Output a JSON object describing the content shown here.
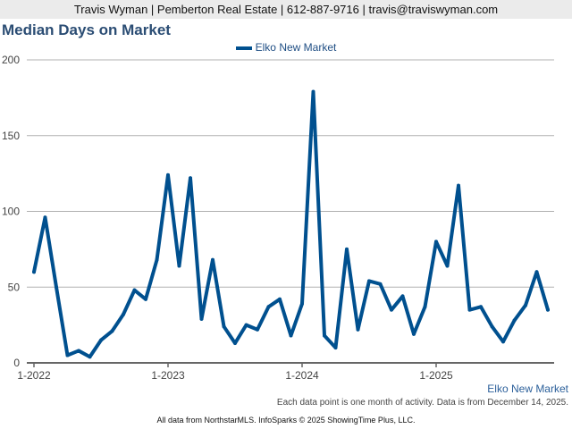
{
  "header": {
    "contact": "Travis Wyman | Pemberton Real Estate | 612-887-9716 | travis@traviswyman.com"
  },
  "chart_data": {
    "type": "line",
    "title": "Median Days on Market",
    "xlabel": "",
    "ylabel": "",
    "ylim": [
      0,
      200
    ],
    "yticks": [
      0,
      50,
      100,
      150,
      200
    ],
    "xtick_labels": [
      "1-2022",
      "1-2023",
      "1-2024",
      "1-2025"
    ],
    "x_start": "1-2022",
    "legend": "top-center",
    "grid": true,
    "color": "#00508f",
    "series": [
      {
        "name": "Elko New Market",
        "values": [
          60,
          96,
          50,
          5,
          8,
          4,
          15,
          21,
          32,
          48,
          42,
          68,
          124,
          64,
          122,
          29,
          68,
          24,
          13,
          25,
          22,
          37,
          42,
          18,
          39,
          179,
          18,
          10,
          75,
          22,
          54,
          52,
          35,
          44,
          19,
          37,
          80,
          64,
          117,
          35,
          37,
          24,
          14,
          28,
          38,
          60,
          35
        ]
      }
    ]
  },
  "footer": {
    "series_label": "Elko New Market",
    "note": "Each data point is one month of activity. Data is from December 14, 2025.",
    "credit": "All data from NorthstarMLS. InfoSparks © 2025 ShowingTime Plus, LLC."
  }
}
